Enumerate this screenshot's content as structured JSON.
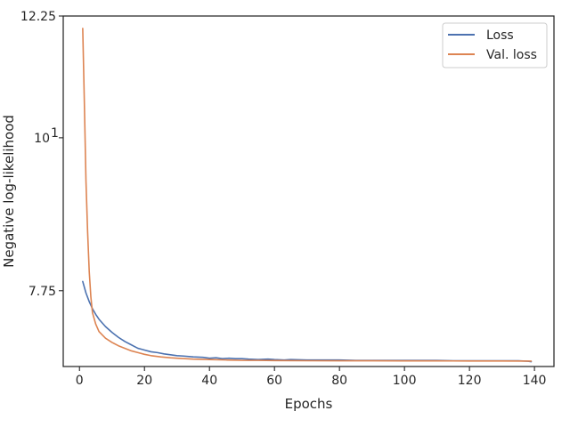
{
  "chart_data": {
    "type": "line",
    "title": "",
    "xlabel": "Epochs",
    "ylabel": "Negative log-likelihood",
    "xlim": [
      -5,
      146
    ],
    "ylim": [
      6.83,
      12.25
    ],
    "y_scale": "log",
    "x_ticks": [
      0,
      20,
      40,
      60,
      80,
      100,
      120,
      140
    ],
    "x_tick_labels": [
      "0",
      "20",
      "40",
      "60",
      "80",
      "100",
      "120",
      "140"
    ],
    "y_ticks": [
      7.75,
      10,
      12.25
    ],
    "y_tick_labels": [
      "7.75",
      "10",
      "12.25"
    ],
    "y_tick_superscripts": [
      "",
      "1",
      ""
    ],
    "grid": false,
    "legend_position": "upper right",
    "series": [
      {
        "name": "Loss",
        "color": "#4c72b0",
        "x": [
          1,
          2,
          3,
          4,
          5,
          6,
          8,
          10,
          12,
          14,
          16,
          17,
          18,
          19,
          20,
          22,
          24,
          26,
          28,
          30,
          32,
          35,
          38,
          40,
          42,
          44,
          46,
          48,
          50,
          52,
          55,
          58,
          60,
          63,
          65,
          70,
          75,
          80,
          85,
          90,
          95,
          100,
          105,
          110,
          115,
          120,
          125,
          130,
          135,
          138,
          139
        ],
        "y": [
          7.87,
          7.72,
          7.61,
          7.52,
          7.45,
          7.39,
          7.3,
          7.23,
          7.17,
          7.12,
          7.08,
          7.06,
          7.04,
          7.03,
          7.02,
          7.0,
          6.99,
          6.975,
          6.965,
          6.955,
          6.95,
          6.94,
          6.935,
          6.925,
          6.93,
          6.92,
          6.925,
          6.92,
          6.92,
          6.915,
          6.91,
          6.915,
          6.91,
          6.905,
          6.91,
          6.905,
          6.905,
          6.905,
          6.9,
          6.9,
          6.9,
          6.9,
          6.9,
          6.9,
          6.895,
          6.895,
          6.895,
          6.895,
          6.895,
          6.89,
          6.885
        ]
      },
      {
        "name": "Val. loss",
        "color": "#dd8452",
        "x": [
          1,
          1.5,
          2,
          2.5,
          3,
          3.5,
          4,
          5,
          6,
          8,
          10,
          12,
          14,
          16,
          18,
          20,
          22,
          25,
          28,
          30,
          35,
          40,
          45,
          50,
          55,
          60,
          70,
          80,
          90,
          100,
          110,
          120,
          130,
          139
        ],
        "y": [
          12.0,
          10.6,
          9.3,
          8.55,
          8.0,
          7.67,
          7.47,
          7.33,
          7.24,
          7.16,
          7.11,
          7.07,
          7.04,
          7.01,
          6.99,
          6.97,
          6.955,
          6.94,
          6.93,
          6.925,
          6.915,
          6.91,
          6.905,
          6.9,
          6.9,
          6.898,
          6.896,
          6.895,
          6.895,
          6.894,
          6.894,
          6.893,
          6.893,
          6.892
        ]
      }
    ]
  }
}
